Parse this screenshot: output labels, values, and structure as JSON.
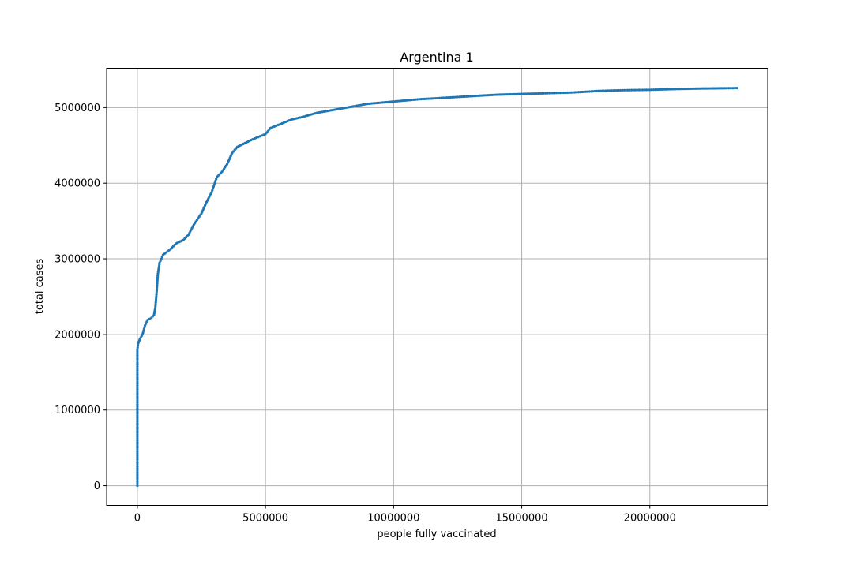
{
  "chart_data": {
    "type": "scatter",
    "title": "Argentina 1",
    "xlabel": "people fully vaccinated",
    "ylabel": "total cases",
    "xlim": [
      -1200000,
      24600000
    ],
    "ylim": [
      -260000,
      5520000
    ],
    "xticks": [
      0,
      5000000,
      10000000,
      15000000,
      20000000
    ],
    "xtick_labels": [
      "0",
      "5000000",
      "10000000",
      "15000000",
      "20000000"
    ],
    "yticks": [
      0,
      1000000,
      2000000,
      3000000,
      4000000,
      5000000
    ],
    "ytick_labels": [
      "0",
      "1000000",
      "2000000",
      "3000000",
      "4000000",
      "5000000"
    ],
    "grid": true,
    "color": "#1f77b4",
    "series": [
      {
        "name": "Argentina",
        "curve_points": [
          [
            0,
            0
          ],
          [
            0,
            200000
          ],
          [
            0,
            500000
          ],
          [
            0,
            1000000
          ],
          [
            0,
            1500000
          ],
          [
            0,
            1800000
          ],
          [
            30000,
            1880000
          ],
          [
            100000,
            1940000
          ],
          [
            200000,
            2000000
          ],
          [
            300000,
            2120000
          ],
          [
            400000,
            2190000
          ],
          [
            550000,
            2220000
          ],
          [
            650000,
            2260000
          ],
          [
            700000,
            2350000
          ],
          [
            750000,
            2550000
          ],
          [
            800000,
            2800000
          ],
          [
            870000,
            2950000
          ],
          [
            1000000,
            3050000
          ],
          [
            1300000,
            3130000
          ],
          [
            1500000,
            3200000
          ],
          [
            1800000,
            3250000
          ],
          [
            2000000,
            3320000
          ],
          [
            2200000,
            3450000
          ],
          [
            2500000,
            3600000
          ],
          [
            2700000,
            3750000
          ],
          [
            2900000,
            3880000
          ],
          [
            3100000,
            4080000
          ],
          [
            3300000,
            4150000
          ],
          [
            3500000,
            4250000
          ],
          [
            3700000,
            4400000
          ],
          [
            3900000,
            4480000
          ],
          [
            4200000,
            4530000
          ],
          [
            4500000,
            4580000
          ],
          [
            5000000,
            4650000
          ],
          [
            5200000,
            4730000
          ],
          [
            5500000,
            4770000
          ],
          [
            6000000,
            4840000
          ],
          [
            6500000,
            4880000
          ],
          [
            7000000,
            4930000
          ],
          [
            8000000,
            4990000
          ],
          [
            9000000,
            5050000
          ],
          [
            10000000,
            5080000
          ],
          [
            11000000,
            5110000
          ],
          [
            12000000,
            5130000
          ],
          [
            13000000,
            5150000
          ],
          [
            14000000,
            5170000
          ],
          [
            15000000,
            5180000
          ],
          [
            16000000,
            5190000
          ],
          [
            17000000,
            5200000
          ],
          [
            18000000,
            5220000
          ],
          [
            19000000,
            5230000
          ],
          [
            20000000,
            5235000
          ],
          [
            21000000,
            5245000
          ],
          [
            22000000,
            5252000
          ],
          [
            23000000,
            5256000
          ],
          [
            23400000,
            5258000
          ]
        ]
      }
    ]
  }
}
